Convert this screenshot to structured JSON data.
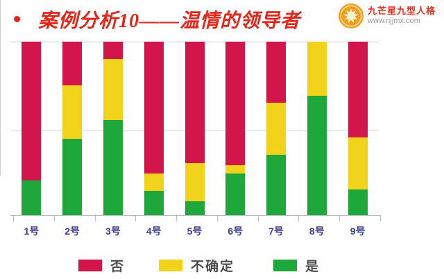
{
  "header": {
    "bullet": "•",
    "title": "案例分析10——温情的领导者",
    "title_color": "#e3261a",
    "logo": {
      "name": "九芒星九型人格",
      "url": "www.njjmx.com",
      "badge_color": "#f5a01d"
    }
  },
  "chart_data": {
    "type": "bar",
    "subtype": "stacked-100-percent",
    "categories": [
      "1号",
      "2号",
      "3号",
      "4号",
      "5号",
      "6号",
      "7号",
      "8号",
      "9号"
    ],
    "series": [
      {
        "name": "否",
        "color": "#d2154a",
        "values": [
          80,
          25,
          10,
          76,
          70,
          71,
          35,
          0,
          55
        ]
      },
      {
        "name": "不确定",
        "color": "#f2d31b",
        "values": [
          0,
          31,
          35,
          10,
          22,
          5,
          30,
          31,
          30
        ]
      },
      {
        "name": "是",
        "color": "#1ea83c",
        "values": [
          20,
          44,
          55,
          14,
          8,
          24,
          35,
          69,
          15
        ]
      }
    ],
    "stack_order_top_to_bottom": [
      "否",
      "不确定",
      "是"
    ],
    "ylim": [
      0,
      100
    ],
    "unit": "percent",
    "gridlines_percent": [
      0,
      50,
      100
    ],
    "grid": "horizontal-only",
    "x_label_color": "#3d3d92",
    "legend_position": "bottom",
    "title": "",
    "xlabel": "",
    "ylabel": ""
  }
}
